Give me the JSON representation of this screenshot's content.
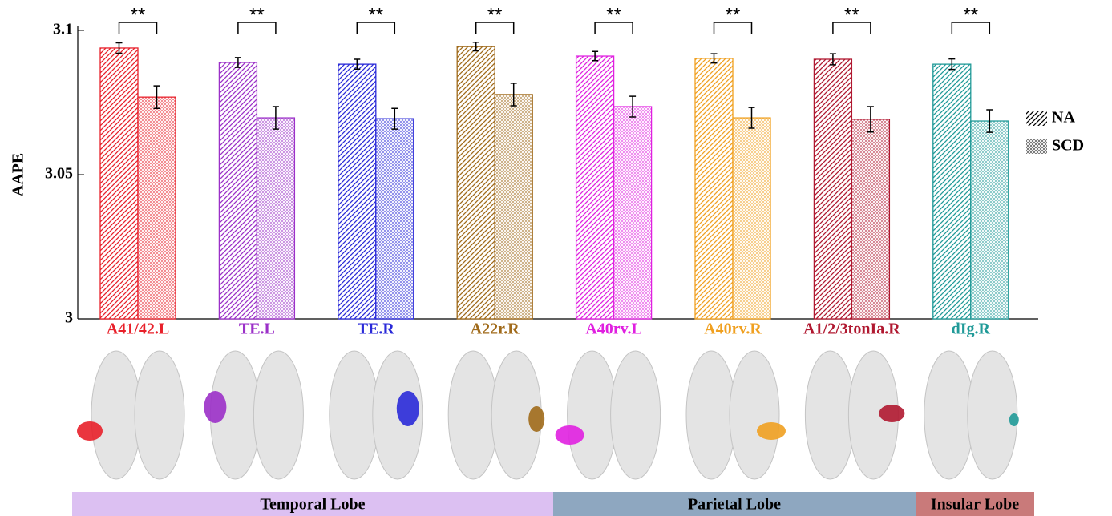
{
  "chart_data": {
    "type": "bar",
    "y_label": "AAPE",
    "categories": [
      "A41/42.L",
      "TE.L",
      "TE.R",
      "A22r.R",
      "A40rv.L",
      "A40rv.R",
      "A1/2/3tonIa.R",
      "dIg.R"
    ],
    "colors": [
      "#e8202a",
      "#9b30c8",
      "#2a2ad8",
      "#a06a1a",
      "#e020e0",
      "#f0a020",
      "#b01830",
      "#209a98"
    ],
    "series": [
      {
        "name": "NA",
        "values": [
          3.0939,
          3.0889,
          3.0883,
          3.0944,
          3.0911,
          3.0903,
          3.09,
          3.0883
        ],
        "errors": [
          0.0018,
          0.0017,
          0.0017,
          0.0015,
          0.0016,
          0.0016,
          0.0019,
          0.0018
        ]
      },
      {
        "name": "SCD",
        "values": [
          3.0769,
          3.0697,
          3.0694,
          3.0778,
          3.0736,
          3.0697,
          3.0692,
          3.0686
        ],
        "errors": [
          0.0039,
          0.0039,
          0.0036,
          0.0039,
          0.0036,
          0.0036,
          0.0044,
          0.0039
        ]
      }
    ],
    "annotations": [
      "**",
      "**",
      "**",
      "**",
      "**",
      "**",
      "**",
      "**"
    ],
    "ylim": [
      3,
      3.1
    ],
    "yticks": [
      3,
      3.05,
      3.1
    ],
    "lobes": [
      {
        "label": "Temporal Lobe",
        "color": "#dcc0f2"
      },
      {
        "label": "Parietal Lobe",
        "color": "#8ea7c0"
      },
      {
        "label": "Insular Lobe",
        "color": "#c97a7a"
      }
    ]
  }
}
